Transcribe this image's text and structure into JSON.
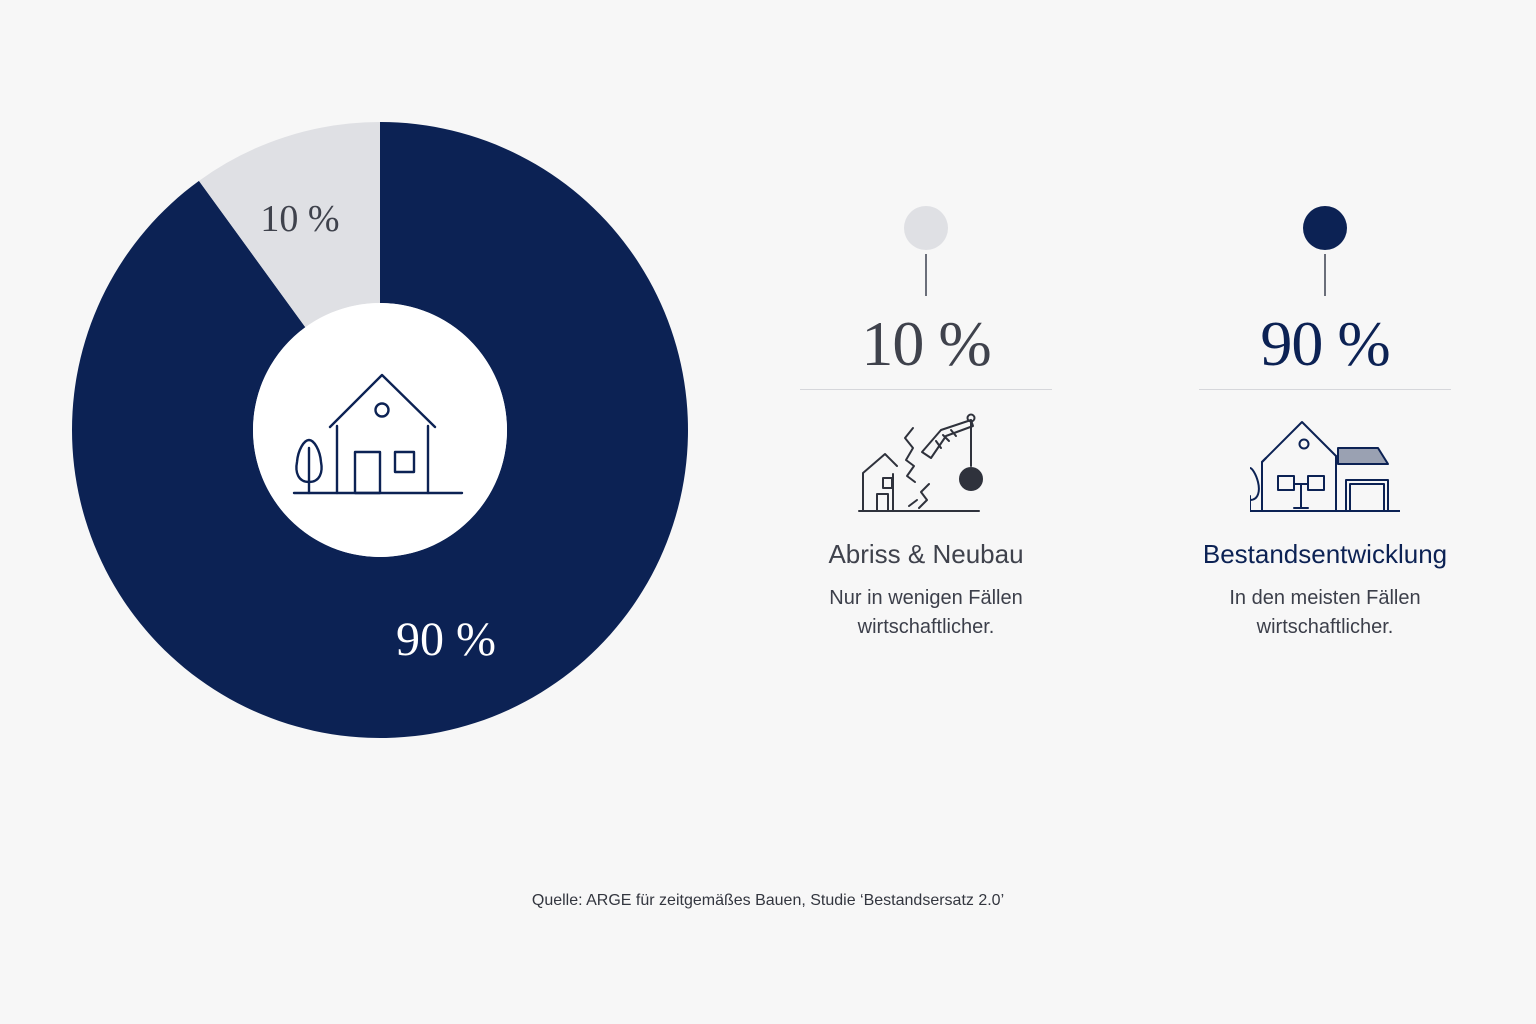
{
  "colors": {
    "navy": "#0c2254",
    "light_gray": "#dfe0e4",
    "background": "#f7f7f7",
    "gray_text": "#3f424c"
  },
  "chart_data": {
    "type": "pie",
    "variant": "donut",
    "title": "",
    "slices": [
      {
        "label": "10 %",
        "value": 10,
        "color": "#dfe0e4"
      },
      {
        "label": "90 %",
        "value": 90,
        "color": "#0c2254"
      }
    ],
    "center_icon": "house-with-tree-icon"
  },
  "legend": [
    {
      "percent": "10 %",
      "heading": "Abriss & Neubau",
      "description_line1": "Nur in wenigen Fällen",
      "description_line2": "wirtschaftlicher.",
      "icon": "demolition-house-icon",
      "dot_color": "#dfe0e4"
    },
    {
      "percent": "90 %",
      "heading": "Bestandsentwicklung",
      "description_line1": "In den meisten Fällen",
      "description_line2": "wirtschaftlicher.",
      "icon": "house-extension-icon",
      "dot_color": "#0c2254"
    }
  ],
  "source": "Quelle: ARGE für zeitgemäßes Bauen, Studie ‘Bestandsersatz 2.0’"
}
